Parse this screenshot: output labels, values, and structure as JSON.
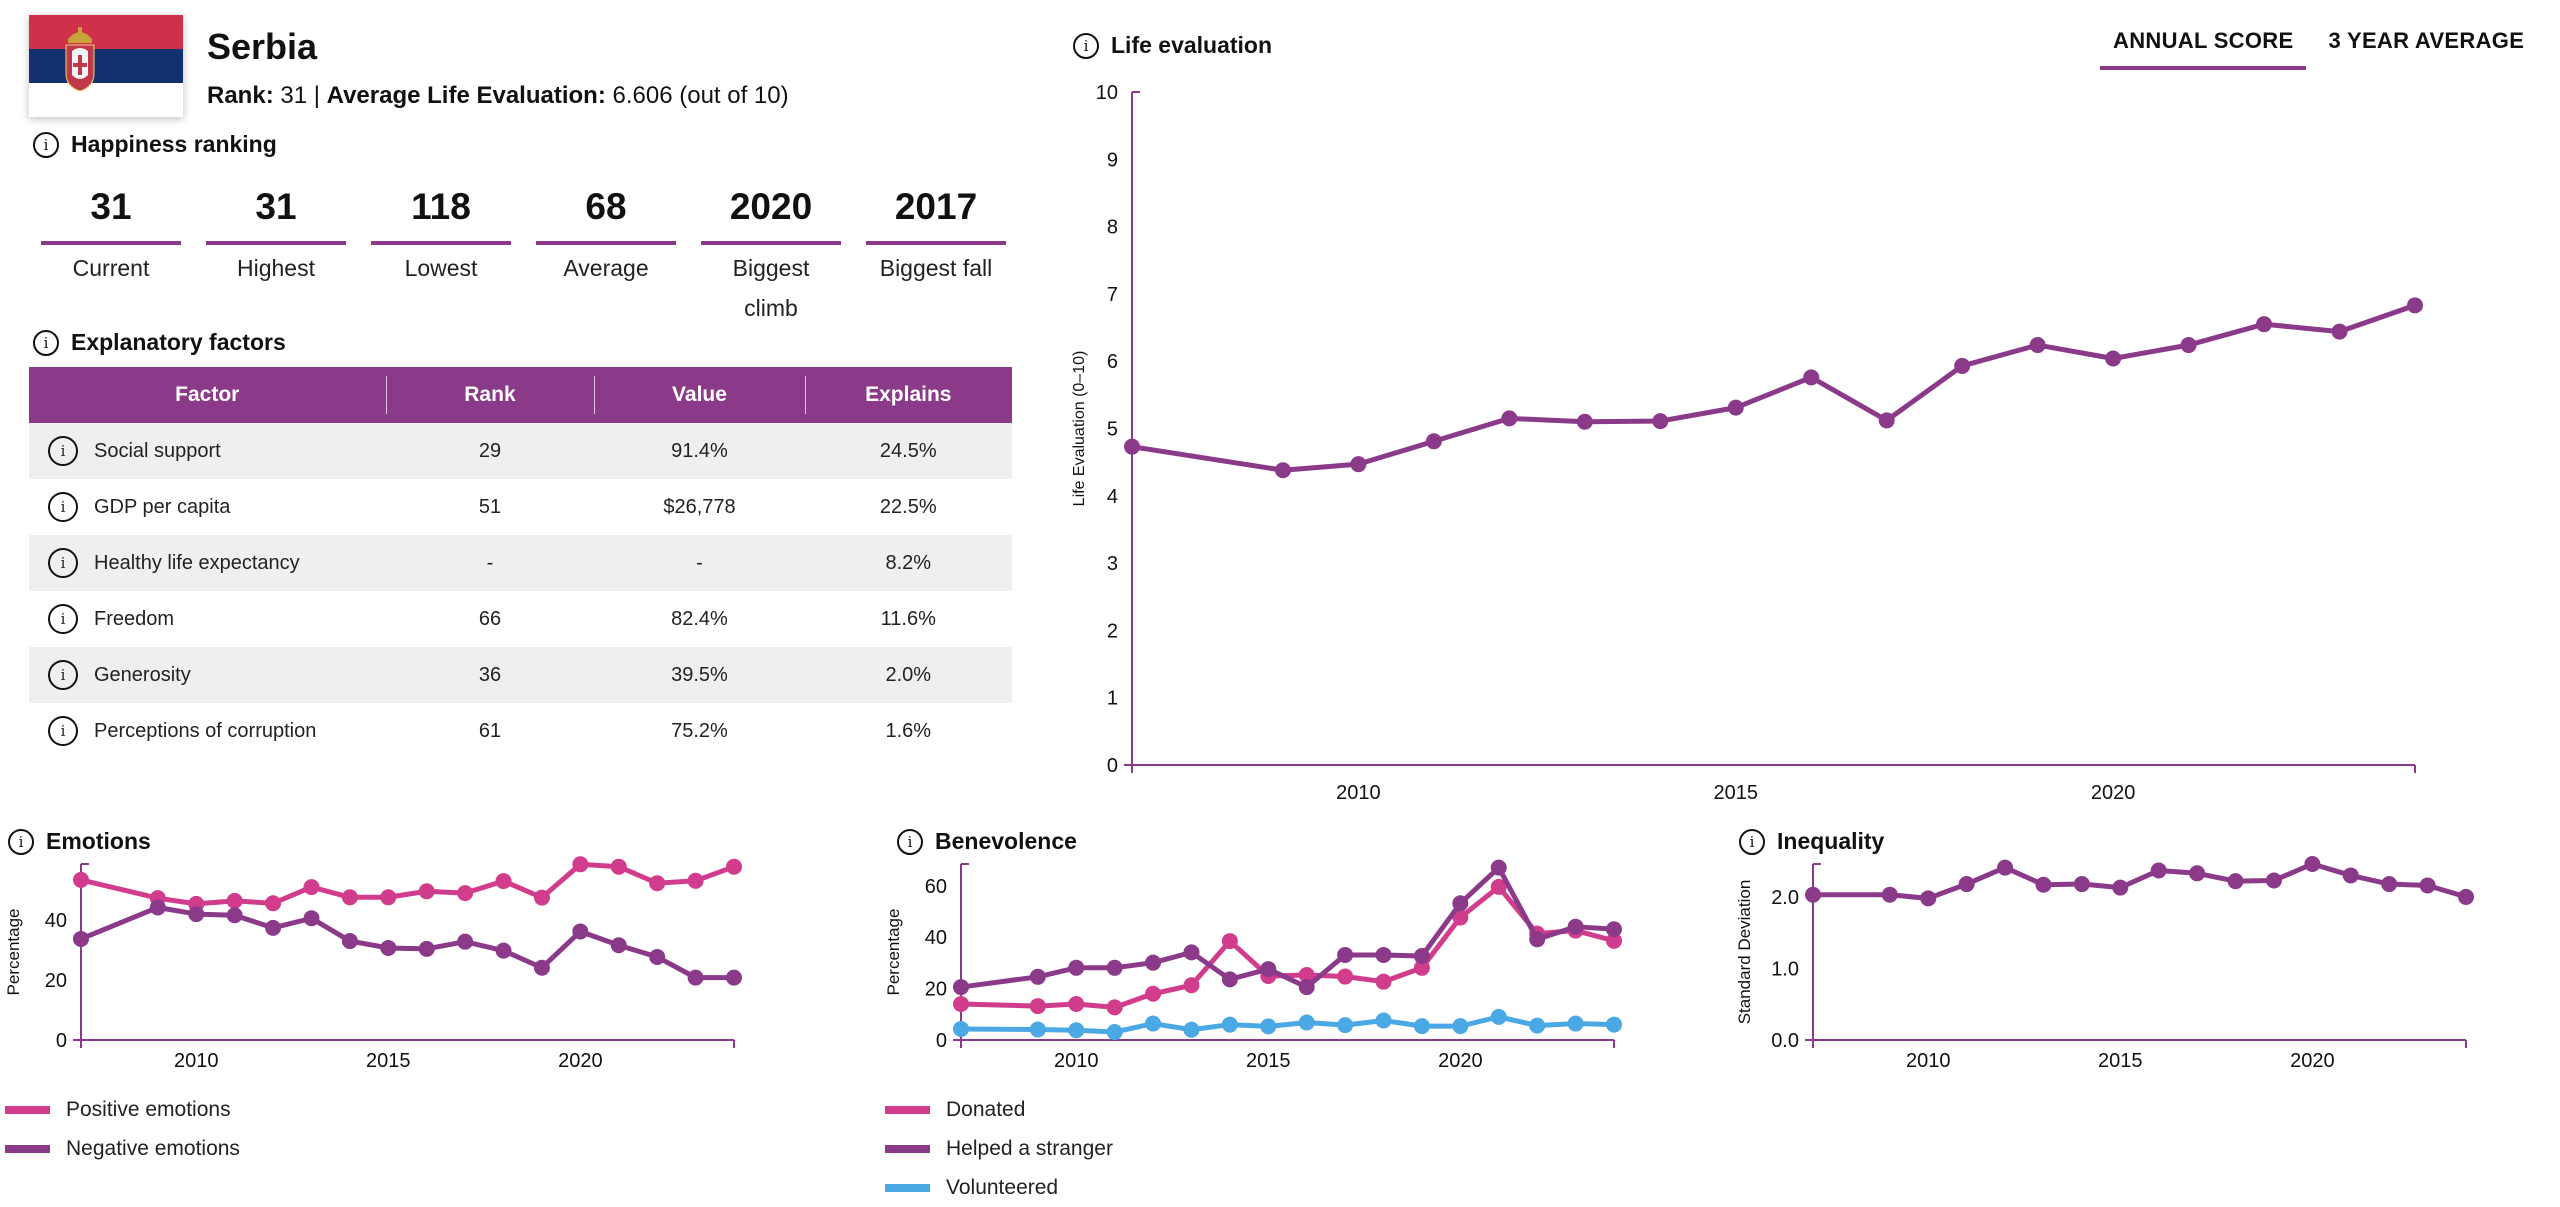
{
  "header": {
    "country": "Serbia",
    "rank_label": "Rank:",
    "rank_value": "31",
    "separator": "|",
    "avg_label": "Average Life Evaluation:",
    "avg_value": "6.606 (out of 10)",
    "flag": {
      "stripes": [
        "#d0314a",
        "#13306f",
        "#ffffff"
      ],
      "icon": "serbia-flag-with-coat-of-arms"
    }
  },
  "happiness_ranking": {
    "title": "Happiness ranking",
    "stats": [
      {
        "value": "31",
        "label": "Current"
      },
      {
        "value": "31",
        "label": "Highest"
      },
      {
        "value": "118",
        "label": "Lowest"
      },
      {
        "value": "68",
        "label": "Average"
      },
      {
        "value": "2020",
        "label": "Biggest climb"
      },
      {
        "value": "2017",
        "label": "Biggest fall"
      }
    ]
  },
  "explanatory_factors": {
    "title": "Explanatory factors",
    "columns": [
      "Factor",
      "Rank",
      "Value",
      "Explains"
    ],
    "rows": [
      {
        "factor": "Social support",
        "rank": "29",
        "value": "91.4%",
        "explains": "24.5%"
      },
      {
        "factor": "GDP per capita",
        "rank": "51",
        "value": "$26,778",
        "explains": "22.5%"
      },
      {
        "factor": "Healthy life expectancy",
        "rank": "-",
        "value": "-",
        "explains": "8.2%"
      },
      {
        "factor": "Freedom",
        "rank": "66",
        "value": "82.4%",
        "explains": "11.6%"
      },
      {
        "factor": "Generosity",
        "rank": "36",
        "value": "39.5%",
        "explains": "2.0%"
      },
      {
        "factor": "Perceptions of corruption",
        "rank": "61",
        "value": "75.2%",
        "explains": "1.6%"
      }
    ]
  },
  "colors": {
    "purple": "#8b3a8a",
    "pink": "#d13d8c",
    "blue": "#4aa8e4",
    "header_bg": "#8b3a8a",
    "row_alt": "#efefef"
  },
  "life_evaluation_panel": {
    "title": "Life evaluation",
    "tabs": [
      {
        "label": "ANNUAL SCORE",
        "active": true
      },
      {
        "label": "3 YEAR AVERAGE",
        "active": false
      }
    ]
  },
  "chart_data": [
    {
      "id": "life-evaluation",
      "type": "line",
      "title": "Life evaluation",
      "xlabel": "",
      "ylabel": "Life Evaluation (0–10)",
      "xlim": [
        2007,
        2024
      ],
      "ylim": [
        0,
        10
      ],
      "xticks": [
        2010,
        2015,
        2020
      ],
      "yticks": [
        "0",
        "1",
        "2",
        "3",
        "4",
        "5",
        "6",
        "7",
        "8",
        "9",
        "10"
      ],
      "grid": false,
      "x": [
        2007,
        2009,
        2010,
        2011,
        2012,
        2013,
        2014,
        2015,
        2016,
        2017,
        2018,
        2019,
        2020,
        2021,
        2022,
        2023,
        2024
      ],
      "series": [
        {
          "name": "Life evaluation",
          "color": "#8b3a8a",
          "values": [
            4.73,
            4.38,
            4.47,
            4.81,
            5.15,
            5.1,
            5.11,
            5.31,
            5.76,
            5.12,
            5.93,
            6.24,
            6.04,
            6.24,
            6.55,
            6.44,
            6.83
          ]
        }
      ]
    },
    {
      "id": "emotions",
      "type": "line",
      "title": "Emotions",
      "ylabel": "Percentage",
      "xlim": [
        2007,
        2024
      ],
      "ylim": [
        0,
        58.7
      ],
      "xticks": [
        2010,
        2015,
        2020
      ],
      "yticks": [
        "0",
        "20",
        "40"
      ],
      "grid": false,
      "legend": "bottom-left",
      "x": [
        2007,
        2009,
        2010,
        2011,
        2012,
        2013,
        2014,
        2015,
        2016,
        2017,
        2018,
        2019,
        2020,
        2021,
        2022,
        2023,
        2024
      ],
      "series": [
        {
          "name": "Positive emotions",
          "color": "#d13d8c",
          "values": [
            53.4,
            47.3,
            45.4,
            46.4,
            45.6,
            51.0,
            47.6,
            47.6,
            49.6,
            49.0,
            53.0,
            47.5,
            58.6,
            57.8,
            52.3,
            53.1,
            57.8
          ]
        },
        {
          "name": "Negative emotions",
          "color": "#8b3a8a",
          "values": [
            33.7,
            44.2,
            42.0,
            41.6,
            37.4,
            40.6,
            33.0,
            30.7,
            30.4,
            32.8,
            29.8,
            24.1,
            36.2,
            31.6,
            27.7,
            20.8,
            20.8
          ]
        }
      ]
    },
    {
      "id": "benevolence",
      "type": "line",
      "title": "Benevolence",
      "ylabel": "Percentage",
      "xlim": [
        2007,
        2024
      ],
      "ylim": [
        0,
        68.5
      ],
      "xticks": [
        2010,
        2015,
        2020
      ],
      "yticks": [
        "0",
        "20",
        "40",
        "60"
      ],
      "grid": false,
      "legend": "bottom-left",
      "x": [
        2007,
        2009,
        2010,
        2011,
        2012,
        2013,
        2014,
        2015,
        2016,
        2017,
        2018,
        2019,
        2020,
        2021,
        2022,
        2023,
        2024
      ],
      "series": [
        {
          "name": "Donated",
          "color": "#d13d8c",
          "values": [
            14.0,
            13.2,
            14.0,
            12.7,
            18.0,
            21.3,
            38.5,
            24.9,
            25.3,
            24.7,
            22.7,
            28.1,
            47.7,
            59.6,
            41.4,
            42.6,
            38.6
          ]
        },
        {
          "name": "Helped a stranger",
          "color": "#8b3a8a",
          "values": [
            20.6,
            24.6,
            28.1,
            28.1,
            30.1,
            34.1,
            23.6,
            27.6,
            20.6,
            33.1,
            33.1,
            32.7,
            53.2,
            67.1,
            39.2,
            44.1,
            43.1
          ]
        },
        {
          "name": "Volunteered",
          "color": "#4aa8e4",
          "values": [
            4.3,
            4.1,
            3.8,
            3.1,
            6.4,
            4.0,
            6.0,
            5.3,
            6.8,
            5.8,
            7.6,
            5.4,
            5.4,
            9.0,
            5.6,
            6.4,
            6.0
          ]
        }
      ]
    },
    {
      "id": "inequality",
      "type": "line",
      "title": "Inequality",
      "ylabel": "Standard Deviation",
      "xlim": [
        2007,
        2024
      ],
      "ylim": [
        0,
        2.46
      ],
      "xticks": [
        2010,
        2015,
        2020
      ],
      "yticks": [
        "0.0",
        "1.0",
        "2.0"
      ],
      "grid": false,
      "x": [
        2007,
        2009,
        2010,
        2011,
        2012,
        2013,
        2014,
        2015,
        2016,
        2017,
        2018,
        2019,
        2020,
        2021,
        2022,
        2023,
        2024
      ],
      "series": [
        {
          "name": "Inequality",
          "color": "#8b3a8a",
          "values": [
            2.03,
            2.03,
            1.98,
            2.18,
            2.41,
            2.17,
            2.18,
            2.13,
            2.37,
            2.33,
            2.22,
            2.23,
            2.46,
            2.3,
            2.18,
            2.16,
            2.0
          ]
        }
      ]
    }
  ]
}
